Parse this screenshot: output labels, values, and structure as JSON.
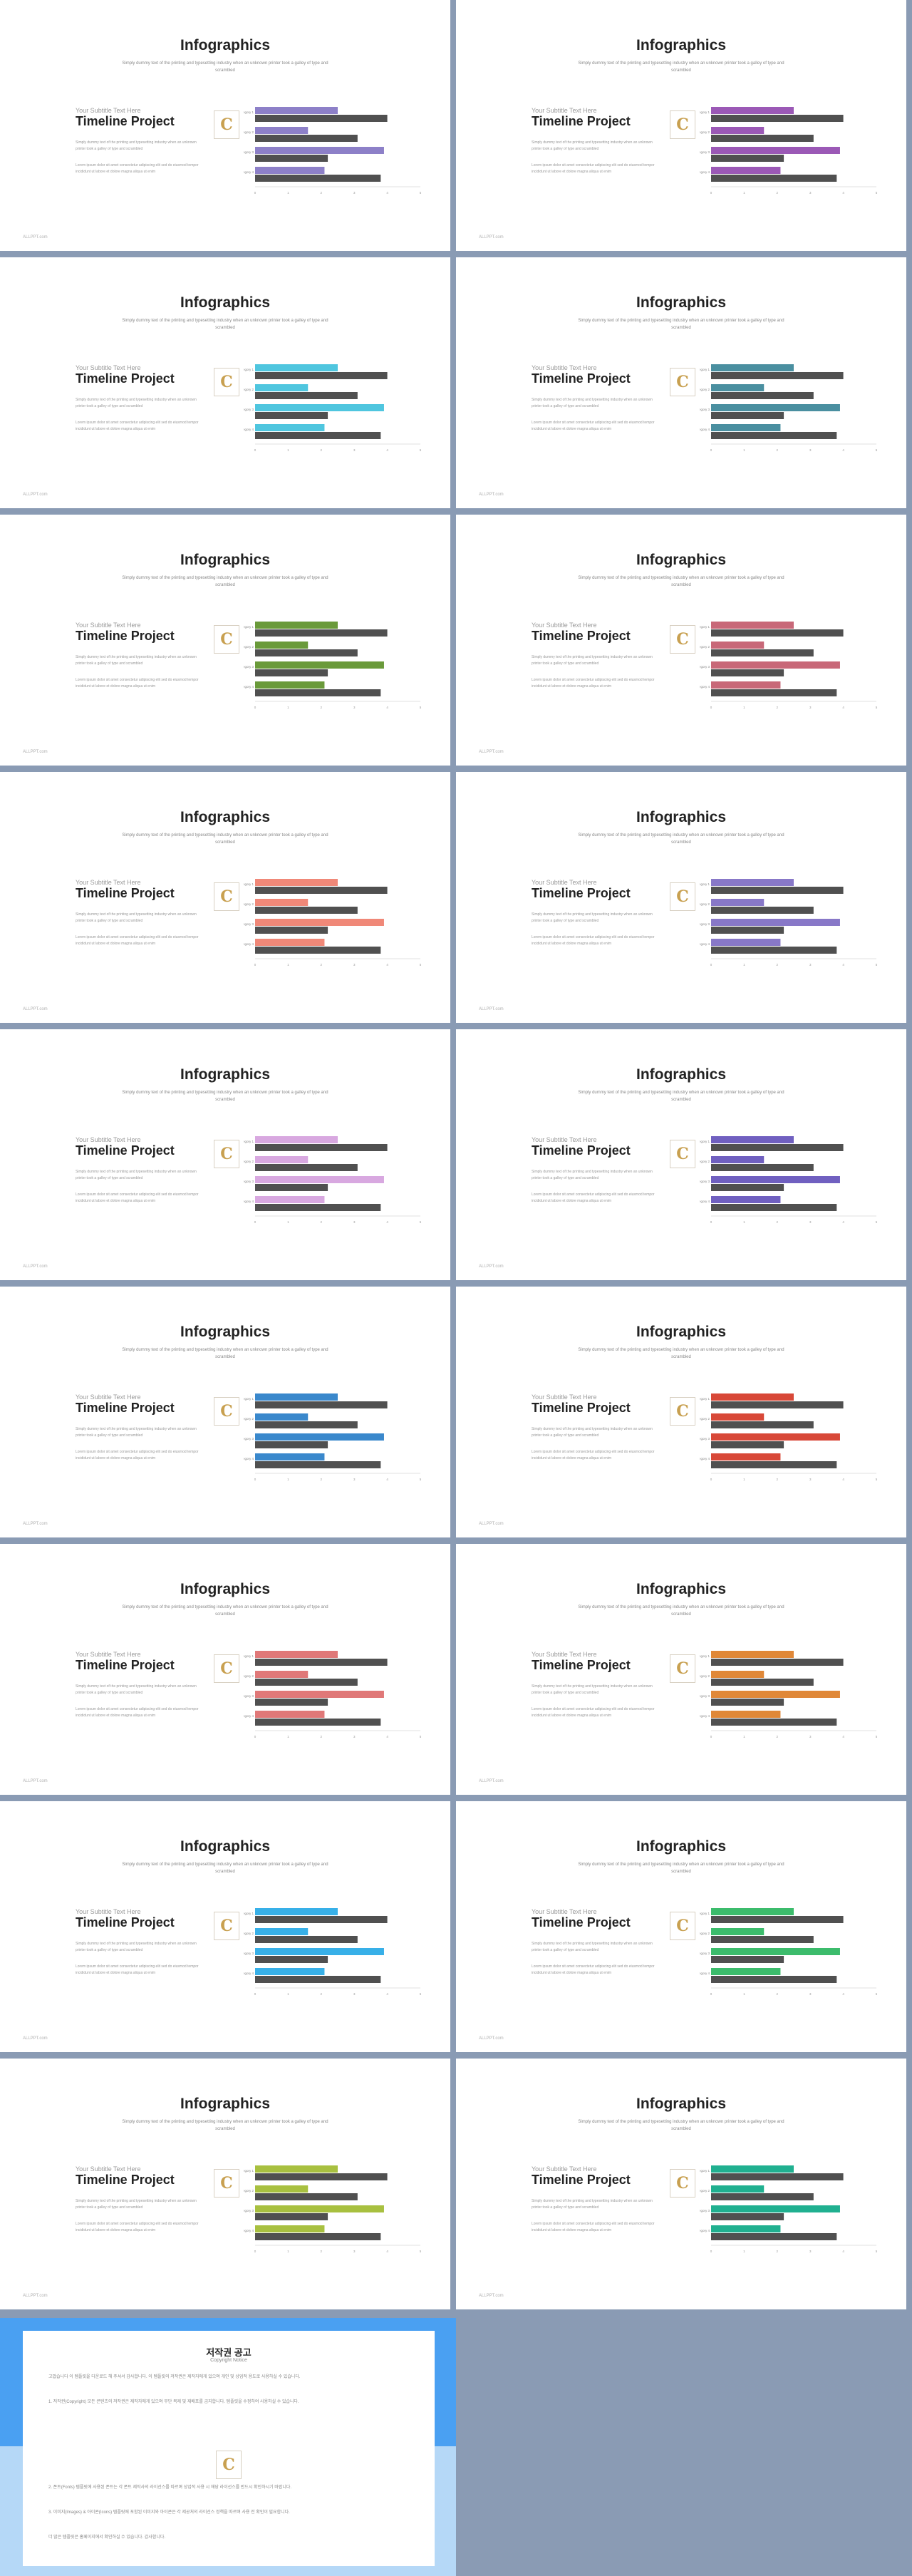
{
  "slide_text": {
    "title": "Infographics",
    "subtitle": "Simply dummy text of the printing and typesetting industry when an unknown printer took a galley of type and scrambled",
    "label": "Your Subtitle Text Here",
    "heading": "Timeline Project",
    "para1": "Simply dummy text of the printing and typesetting industry when an unknown printer took a galley of type and scrambled",
    "para2": "Lorem ipsum dolor sit amet consectetur adipiscing elit sed do eiusmod tempor incididunt ut labore et dolore magna aliqua ut enim",
    "footer": "ALLPPT.com",
    "logo": "C"
  },
  "chart_data": {
    "type": "bar",
    "orientation": "horizontal",
    "categories": [
      "Category 1",
      "Category 2",
      "Category 3",
      "Category 4"
    ],
    "series": [
      {
        "values": [
          2.5,
          1.6,
          3.9,
          2.1
        ]
      },
      {
        "values": [
          4.0,
          3.1,
          2.2,
          3.8
        ]
      }
    ],
    "xlim": [
      0,
      5
    ],
    "xticks": [
      "0",
      "1",
      "2",
      "3",
      "4",
      "5"
    ]
  },
  "accents": [
    "#8d80c8",
    "#9b59b6",
    "#4fc6df",
    "#4a8fa0",
    "#6a9a3a",
    "#c86878",
    "#f08878",
    "#8878c8",
    "#d8a8e0",
    "#7060c0",
    "#3a88cc",
    "#d84838",
    "#e07878",
    "#e08838",
    "#38b0e8",
    "#3cbc6c",
    "#a8c040",
    "#20b090"
  ],
  "notice": {
    "title": "저작권 공고",
    "subtitle": "Copyright Notice",
    "paragraphs": [
      "고맙습니다 이 템플릿을 다운로드 해 주셔서 감사합니다. 이 템플릿의 저작권은 제작자에게 있으며 개인 및 상업적 용도로 사용하실 수 있습니다.",
      "1. 저작권(Copyright) 모든 콘텐츠의 저작권은 제작자에게 있으며 무단 복제 및 재배포를 금지합니다. 템플릿을 수정하여 사용하실 수 있습니다.",
      "2. 폰트(Fonts) 템플릿에 사용된 폰트는 각 폰트 제작사의 라이선스를 따르며 상업적 사용 시 해당 라이선스를 반드시 확인하시기 바랍니다.",
      "3. 이미지(Images) & 아이콘(Icons) 템플릿에 포함된 이미지와 아이콘은 각 제공처의 라이선스 정책을 따르며 사용 전 확인이 필요합니다.",
      "더 많은 템플릿은 홈페이지에서 확인하실 수 있습니다. 감사합니다."
    ],
    "logo": "C"
  }
}
